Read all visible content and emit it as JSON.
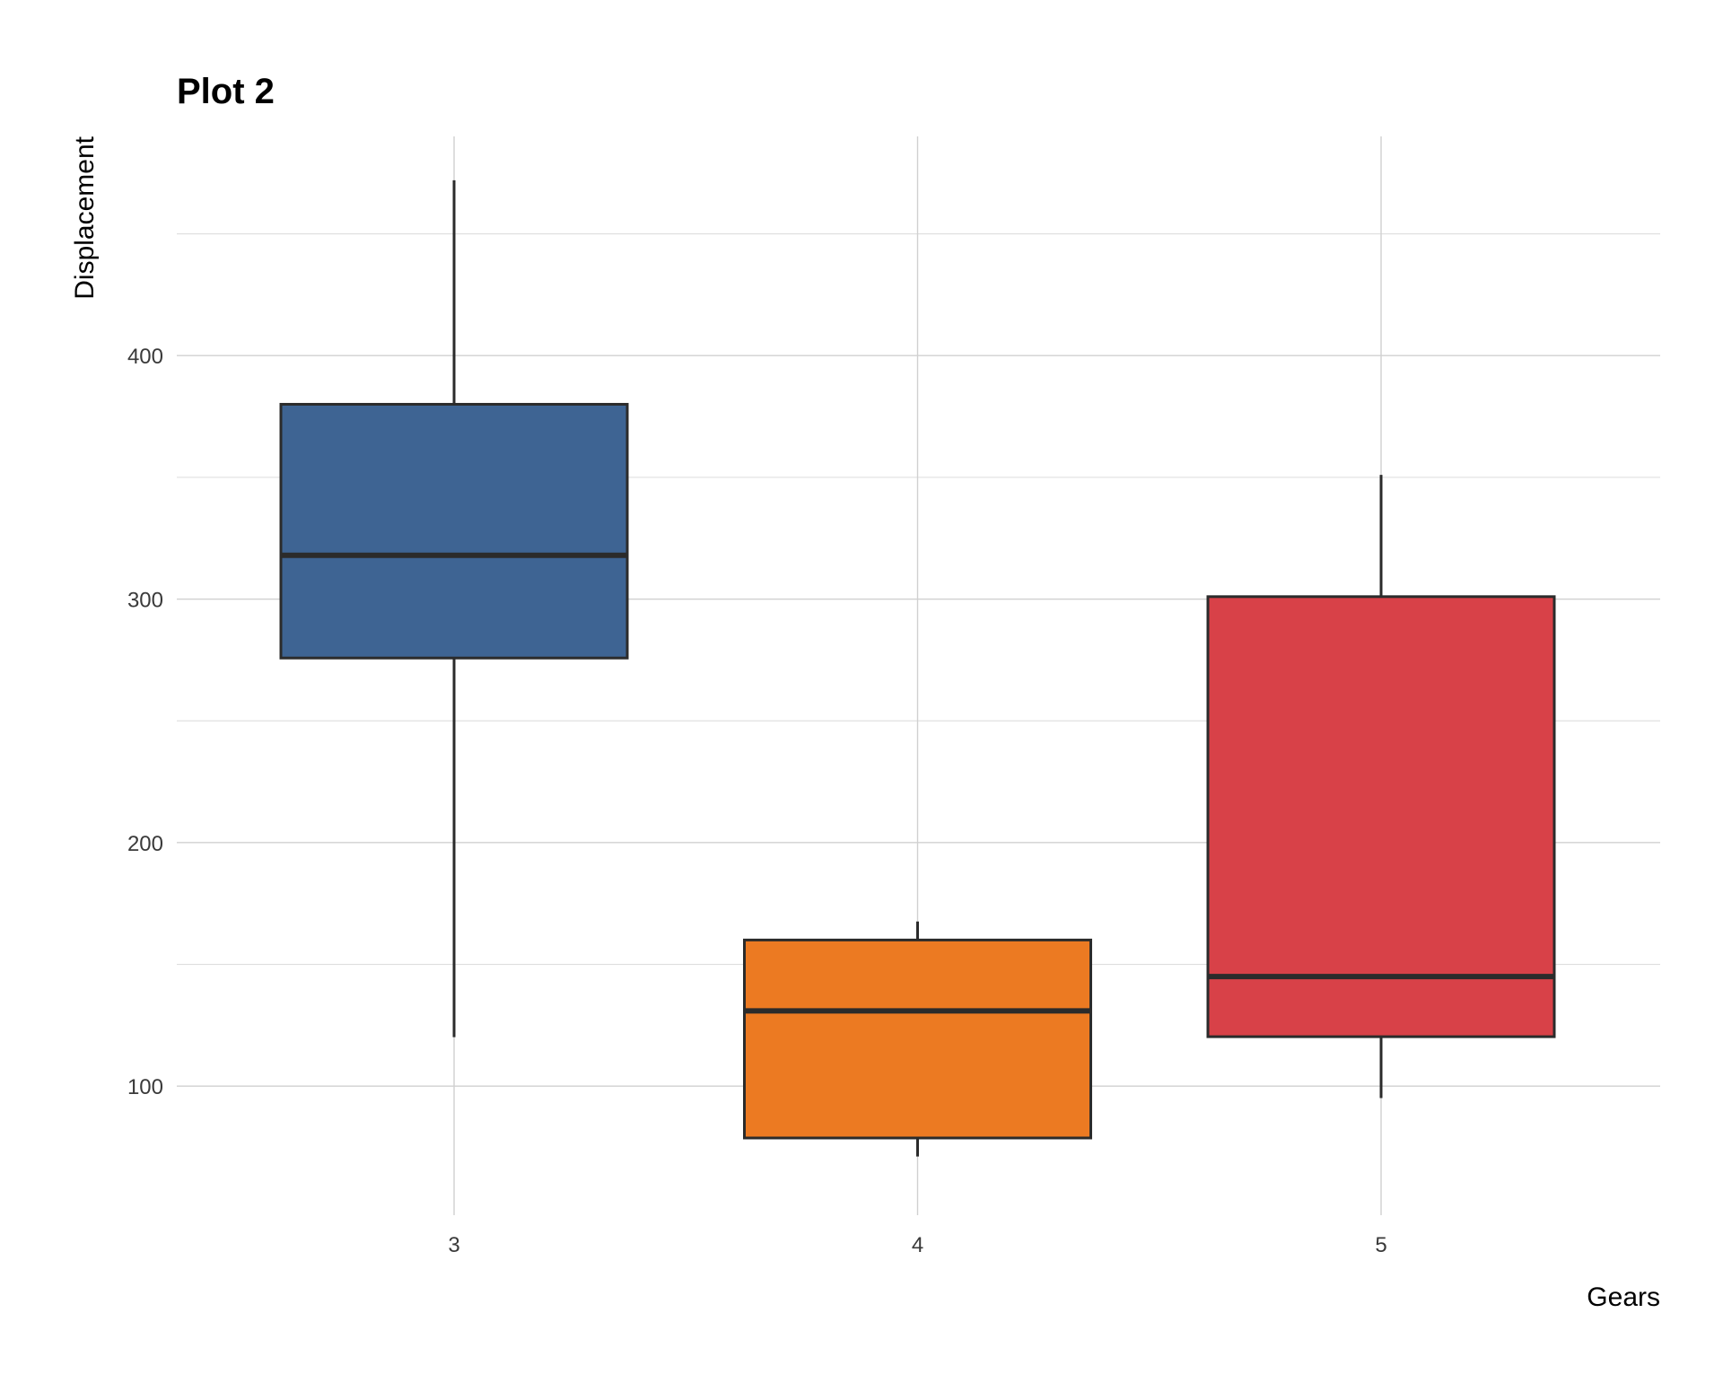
{
  "chart_data": {
    "type": "boxplot",
    "title": "Plot 2",
    "xlabel": "Gears",
    "ylabel": "Displacement",
    "categories": [
      "3",
      "4",
      "5"
    ],
    "ylim": [
      47,
      490
    ],
    "y_ticks": [
      100,
      200,
      300,
      400
    ],
    "y_minor_ticks": [
      150,
      250,
      350,
      450
    ],
    "grid": true,
    "legend": "none",
    "boxes": [
      {
        "category": "3",
        "lower_whisker": 120.1,
        "q1": 275.8,
        "median": 318.0,
        "q3": 380.0,
        "upper_whisker": 472.0,
        "color": "#3E6493"
      },
      {
        "category": "4",
        "lower_whisker": 71.1,
        "q1": 78.7,
        "median": 130.9,
        "q3": 160.0,
        "upper_whisker": 167.6,
        "color": "#EC7A22"
      },
      {
        "category": "5",
        "lower_whisker": 95.1,
        "q1": 120.3,
        "median": 145.0,
        "q3": 301.0,
        "upper_whisker": 351.0,
        "color": "#D84148"
      }
    ]
  }
}
